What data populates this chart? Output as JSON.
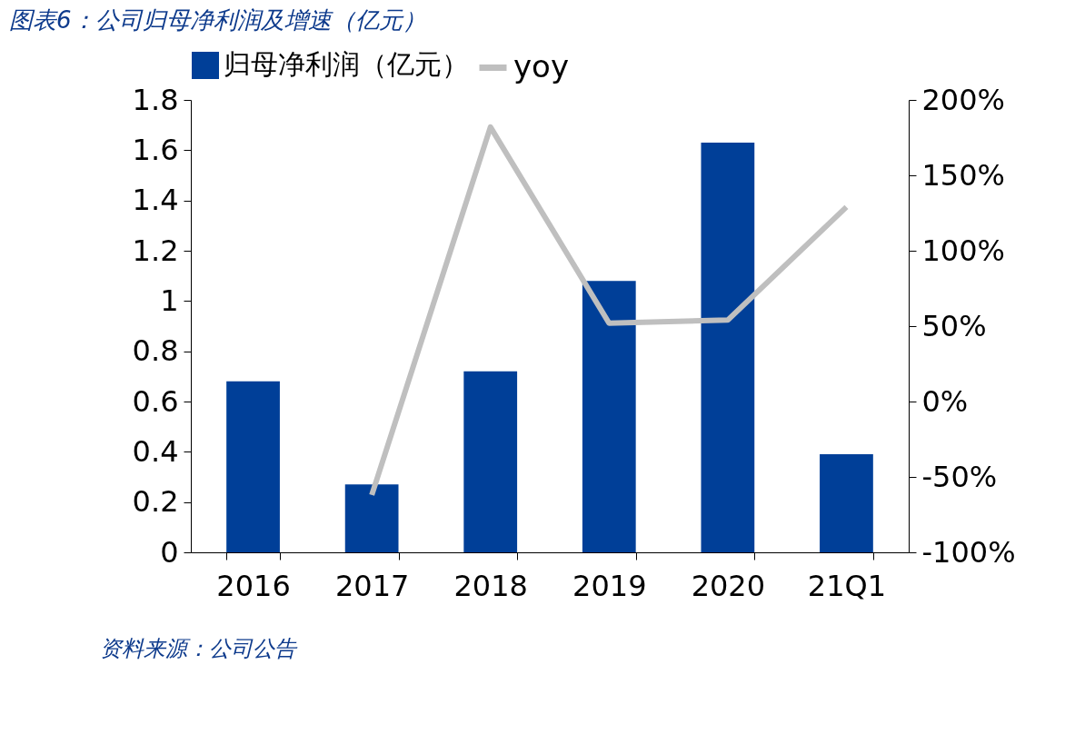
{
  "chart_data": {
    "type": "bar",
    "title": "图表6：公司归母净利润及增速（亿元）",
    "categories": [
      "2016",
      "2017",
      "2018",
      "2019",
      "2020",
      "21Q1"
    ],
    "series": [
      {
        "name": "归母净利润（亿元）",
        "color": "#003f98",
        "values": [
          0.68,
          0.27,
          0.72,
          1.08,
          1.63,
          0.39
        ]
      },
      {
        "name": "yoy",
        "type": "line",
        "axis": "y2",
        "color": "#bfbfbf",
        "values": [
          null,
          -62,
          182,
          52,
          54,
          129
        ]
      }
    ],
    "ylim": [
      0,
      1.8
    ],
    "yticks": [
      0,
      0.2,
      0.4,
      0.6,
      0.8,
      1,
      1.2,
      1.4,
      1.6,
      1.8
    ],
    "y2lim": [
      -100,
      200
    ],
    "y2ticks": [
      {
        "value": -100,
        "label": "-100%"
      },
      {
        "value": -50,
        "label": "-50%"
      },
      {
        "value": 0,
        "label": "0%"
      },
      {
        "value": 50,
        "label": "50%"
      },
      {
        "value": 100,
        "label": "100%"
      },
      {
        "value": 150,
        "label": "150%"
      },
      {
        "value": 200,
        "label": "200%"
      }
    ],
    "legend": "top",
    "grid": false,
    "marker": "none",
    "line_style": "solid",
    "annotations": [
      "资料来源：公司公告"
    ]
  }
}
